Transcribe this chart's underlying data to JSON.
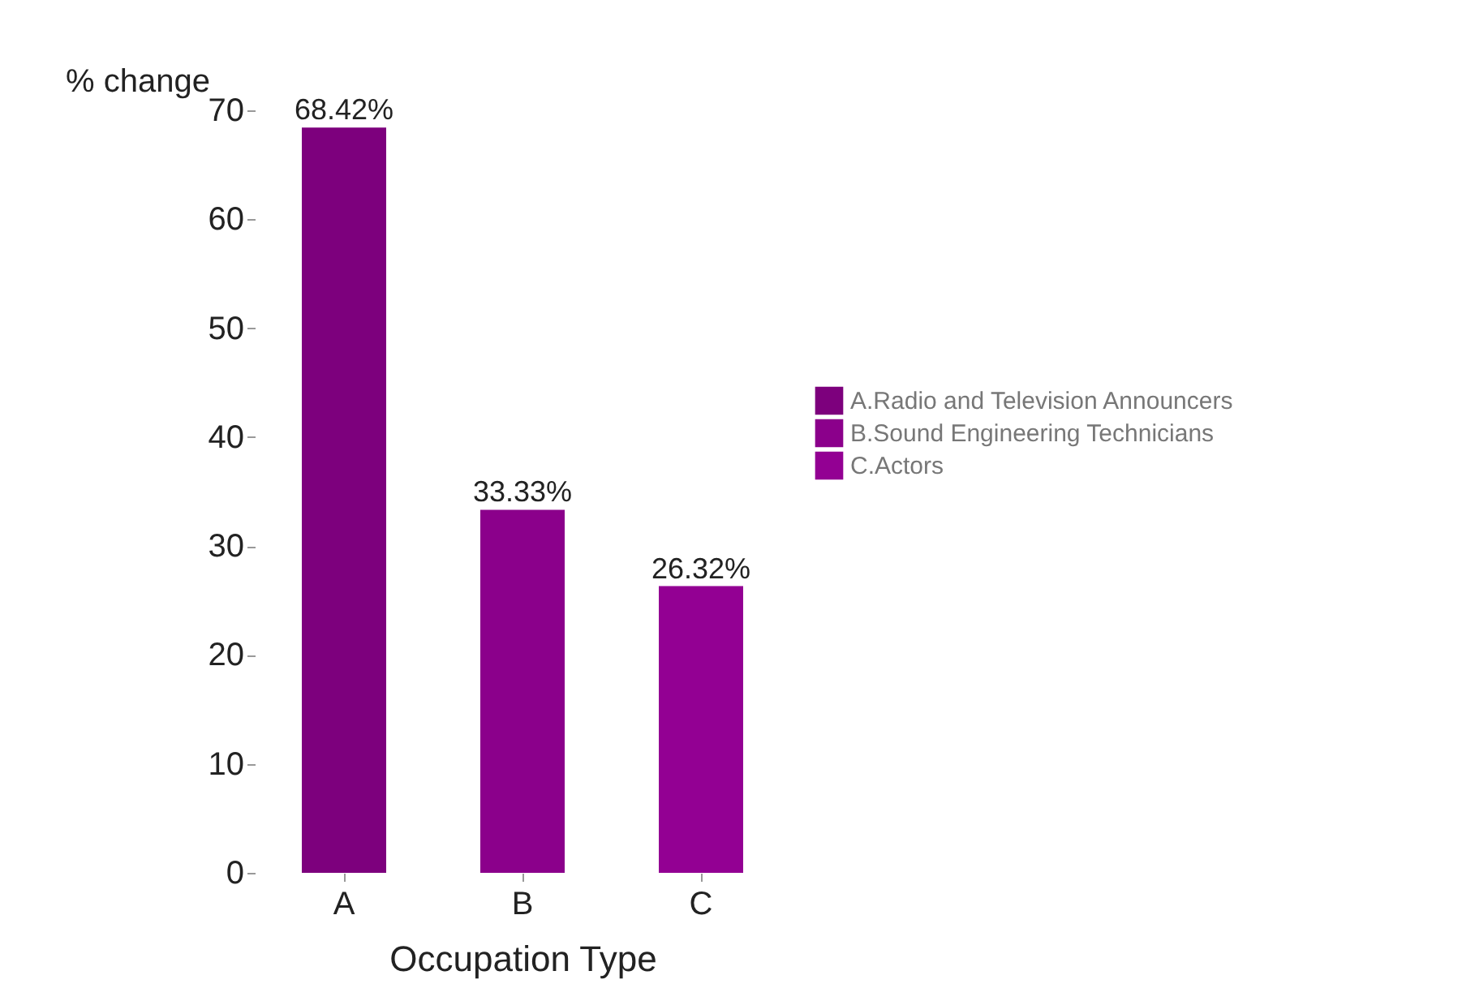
{
  "chart_data": {
    "type": "bar",
    "xlabel": "Occupation Type",
    "ylabel": "% change",
    "categories": [
      "A",
      "B",
      "C"
    ],
    "series": [
      {
        "name": "A.Radio and Television Announcers",
        "color": "#7d007d",
        "values": [
          68.42,
          null,
          null
        ],
        "value_labels": [
          "68.42%",
          null,
          null
        ]
      },
      {
        "name": "B.Sound Engineering Technicians",
        "color": "#8b008b",
        "values": [
          null,
          33.33,
          null
        ],
        "value_labels": [
          null,
          "33.33%",
          null
        ]
      },
      {
        "name": "C.Actors",
        "color": "#930093",
        "values": [
          null,
          null,
          26.32
        ],
        "value_labels": [
          null,
          null,
          "26.32%"
        ]
      }
    ],
    "ylim": [
      0,
      70
    ],
    "yticks": [
      0,
      10,
      20,
      30,
      40,
      50,
      60,
      70
    ],
    "grid": false,
    "legend": "right"
  }
}
